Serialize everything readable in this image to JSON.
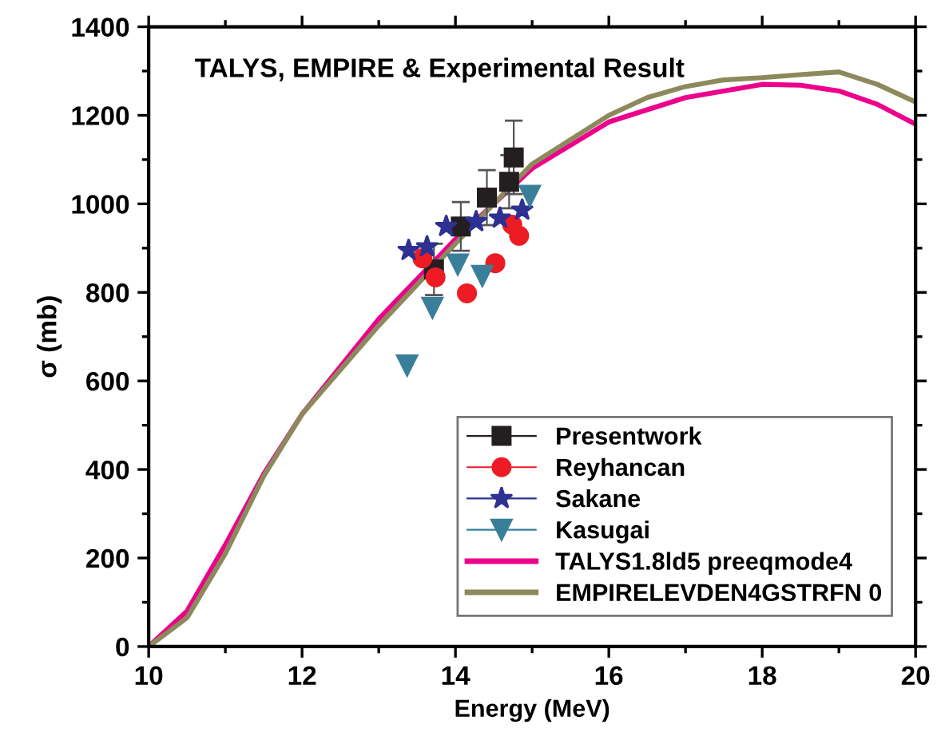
{
  "chart_data": {
    "type": "scatter",
    "title": "TALYS, EMPIRE & Experimental Result",
    "xlabel": "Energy (MeV)",
    "ylabel": "σ (mb)",
    "xlim": [
      10,
      20
    ],
    "xticks": [
      10,
      12,
      14,
      16,
      18,
      20
    ],
    "ylim": [
      0,
      1400
    ],
    "yticks": [
      0,
      200,
      400,
      600,
      800,
      1000,
      1200,
      1400
    ],
    "legend": "bottom right",
    "grid": false,
    "series": [
      {
        "name": "Presentwork",
        "marker": "square",
        "color": "#231f20",
        "x": [
          13.72,
          14.07,
          14.41,
          14.7,
          14.76
        ],
        "values": [
          852,
          949,
          1014,
          1050,
          1105
        ],
        "errors": [
          58,
          55,
          62,
          60,
          83
        ]
      },
      {
        "name": "Reyhancan",
        "marker": "circle",
        "color": "#ed1c24",
        "x": [
          13.57,
          13.74,
          14.15,
          14.52,
          14.74,
          14.83
        ],
        "values": [
          877,
          834,
          798,
          866,
          953,
          928
        ]
      },
      {
        "name": "Sakane",
        "marker": "star",
        "color": "#2e3192",
        "x": [
          13.39,
          13.63,
          13.88,
          14.27,
          14.58,
          14.87
        ],
        "values": [
          895,
          903,
          949,
          960,
          968,
          986
        ]
      },
      {
        "name": "Kasugai",
        "marker": "triangle",
        "color": "#3a7f9a",
        "x": [
          13.37,
          13.7,
          14.03,
          14.35,
          14.97
        ],
        "values": [
          635,
          765,
          863,
          837,
          1018
        ]
      },
      {
        "name": "TALYS1.8ld5 preeqmode4",
        "type": "line",
        "color": "#ec008c",
        "x": [
          10,
          10.5,
          11,
          11.5,
          12,
          13,
          14,
          15,
          16,
          17,
          18,
          18.5,
          19,
          19.5,
          20
        ],
        "values": [
          0,
          80,
          230,
          390,
          525,
          740,
          920,
          1080,
          1185,
          1240,
          1270,
          1268,
          1255,
          1225,
          1180
        ]
      },
      {
        "name": "EMPIRELEVDEN4GSTRFN 0",
        "type": "line",
        "color": "#8c8a5c",
        "x": [
          10,
          10.5,
          11,
          11.5,
          12,
          13,
          14,
          15,
          16,
          16.5,
          17,
          17.5,
          18,
          18.5,
          19,
          19.5,
          20
        ],
        "values": [
          0,
          65,
          210,
          385,
          525,
          725,
          910,
          1090,
          1200,
          1240,
          1265,
          1280,
          1285,
          1292,
          1298,
          1270,
          1230
        ]
      }
    ]
  }
}
